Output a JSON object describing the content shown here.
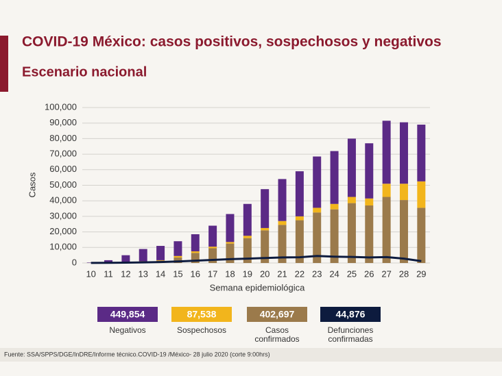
{
  "chart_data": {
    "type": "bar",
    "stacked": true,
    "title": "COVID-19 México: casos positivos, sospechosos y negativos",
    "subtitle": "Escenario nacional",
    "y_label": "Casos",
    "x_label": "Semana epidemiológica",
    "source": "Fuente: SSA/SPPS/DGE/InDRE/Informe técnico.COVID-19 /México- 28 julio 2020 (corte 9:00hrs)",
    "categories": [
      "10",
      "11",
      "12",
      "13",
      "14",
      "15",
      "16",
      "17",
      "18",
      "19",
      "20",
      "21",
      "22",
      "23",
      "24",
      "25",
      "26",
      "27",
      "28",
      "29"
    ],
    "ylim": [
      0,
      100000
    ],
    "yticks": [
      0,
      {
        "value": 10000,
        "label": "10,000"
      },
      {
        "value": 20000,
        "label": "20,000"
      },
      {
        "value": 30000,
        "label": "30,000"
      },
      {
        "value": 40000,
        "label": "40,000"
      },
      {
        "value": 50000,
        "label": "50,000"
      },
      {
        "value": 60000,
        "label": "60,000"
      },
      {
        "value": 70000,
        "label": "70,000"
      },
      {
        "value": 80000,
        "label": "80,000"
      },
      {
        "value": 90000,
        "label": "90,000"
      },
      {
        "value": 100000,
        "label": "100,000"
      }
    ],
    "grid": true,
    "series": [
      {
        "name": "Negativos",
        "color": "#5b2a86",
        "total": {
          "value": 449854,
          "label": "449,854"
        },
        "values": [
          250,
          1600,
          4400,
          7900,
          9200,
          9500,
          11000,
          13500,
          18000,
          20500,
          25000,
          27000,
          29000,
          33000,
          34000,
          37500,
          35500,
          40500,
          39500,
          36500
        ]
      },
      {
        "name": "Sospechosos",
        "color": "#f2b51c",
        "total": {
          "value": 87538,
          "label": "87,538"
        },
        "values": [
          0,
          0,
          100,
          200,
          300,
          1000,
          1000,
          1000,
          1000,
          1500,
          1500,
          2500,
          2500,
          3000,
          3500,
          4000,
          4500,
          8500,
          10500,
          17000
        ]
      },
      {
        "name": "Casos confirmados",
        "color": "#9b7a4b",
        "total": {
          "value": 402697,
          "label": "402,697"
        },
        "values": [
          50,
          200,
          500,
          900,
          1500,
          3500,
          6500,
          9500,
          12500,
          16000,
          21000,
          24500,
          27500,
          32500,
          34500,
          38500,
          37000,
          42500,
          40500,
          35500
        ]
      },
      {
        "name": "Defunciones confirmadas",
        "color": "#0d1b3e",
        "type": "line",
        "total": {
          "value": 44876,
          "label": "44,876"
        },
        "values": [
          50,
          100,
          200,
          400,
          600,
          1000,
          1500,
          2000,
          2500,
          2800,
          3200,
          3600,
          3700,
          4500,
          4100,
          3900,
          3600,
          3800,
          2800,
          1200
        ]
      }
    ]
  }
}
